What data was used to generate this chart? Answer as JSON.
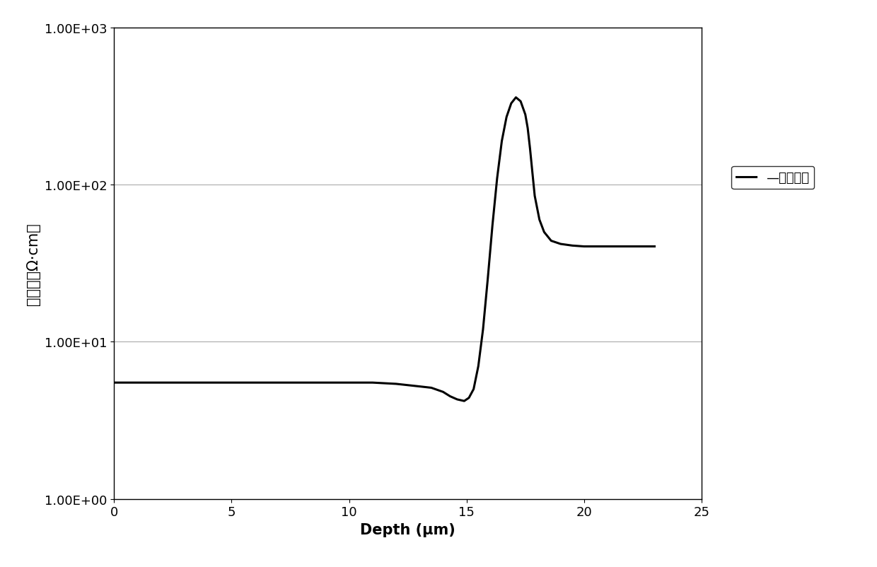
{
  "x_label": "Depth (μm)",
  "y_label": "电阔率（Ω·cm）",
  "legend_label": "器件要求",
  "x_min": 0,
  "x_max": 25,
  "x_ticks": [
    0,
    5,
    10,
    15,
    20,
    25
  ],
  "y_min": 1.0,
  "y_max": 1000.0,
  "line_color": "#000000",
  "line_width": 2.2,
  "background_color": "#ffffff",
  "grid_color": "#aaaaaa",
  "curve_x": [
    0,
    0.5,
    1,
    2,
    3,
    4,
    5,
    6,
    7,
    8,
    9,
    9.5,
    10,
    11,
    12,
    13,
    13.5,
    14,
    14.3,
    14.6,
    14.9,
    15.1,
    15.3,
    15.5,
    15.7,
    15.9,
    16.1,
    16.3,
    16.5,
    16.7,
    16.9,
    17.1,
    17.3,
    17.5,
    17.6,
    17.7,
    17.8,
    17.9,
    18.1,
    18.3,
    18.6,
    19.0,
    19.5,
    20.0,
    20.5,
    21.0,
    21.5,
    22.0,
    22.5,
    23.0
  ],
  "curve_y": [
    5.5,
    5.5,
    5.5,
    5.5,
    5.5,
    5.5,
    5.5,
    5.5,
    5.5,
    5.5,
    5.5,
    5.5,
    5.5,
    5.5,
    5.4,
    5.2,
    5.1,
    4.8,
    4.5,
    4.3,
    4.2,
    4.4,
    5.0,
    7.0,
    12.0,
    25.0,
    55.0,
    110.0,
    190.0,
    270.0,
    330.0,
    360.0,
    340.0,
    280.0,
    230.0,
    170.0,
    120.0,
    85.0,
    60.0,
    50.0,
    44.0,
    42.0,
    41.0,
    40.5,
    40.5,
    40.5,
    40.5,
    40.5,
    40.5,
    40.5
  ]
}
